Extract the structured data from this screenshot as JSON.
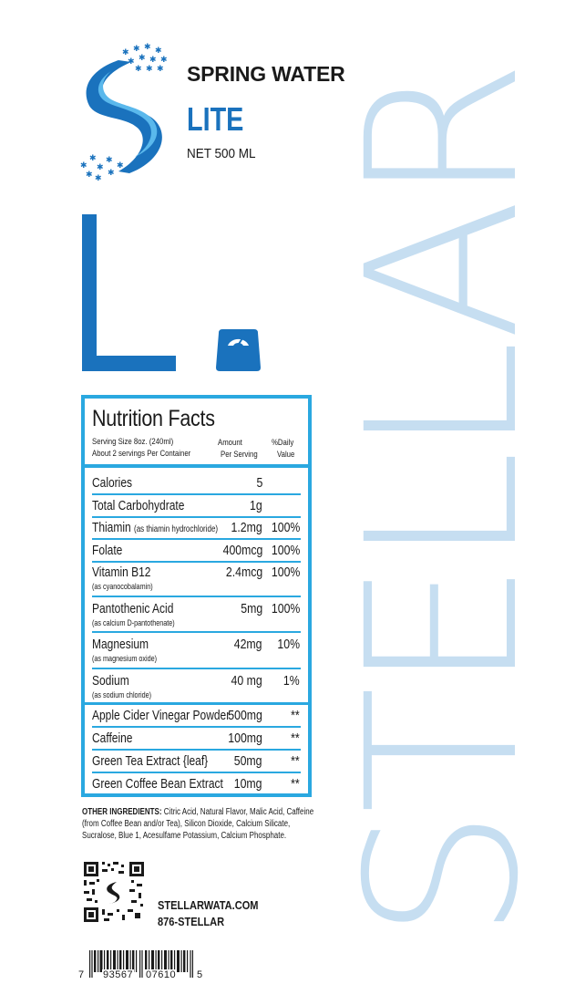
{
  "brand": {
    "vertical_name": "STELLAR",
    "product_line": "SPRING WATER",
    "variant": "LITE",
    "net_content": "NET 500 ML",
    "accent_color": "#1a72bd",
    "panel_color": "#2aa8e0",
    "vertical_color": "#c6def1"
  },
  "icons": {
    "logo": "stellar-s-logo-icon",
    "big_letter": "letter-l-mark",
    "scale": "weighing-scale-icon",
    "qr": "qr-code-icon",
    "barcode": "barcode-icon"
  },
  "nutrition": {
    "title": "Nutrition Facts",
    "serving_size": "Serving Size 8oz. (240ml)",
    "servings_per_container": "About 2 servings Per Container",
    "amount_header_1": "Amount",
    "amount_header_2": "Per Serving",
    "dv_header_1": "%Daily",
    "dv_header_2": "Value",
    "rows": [
      {
        "name": "Calories",
        "note": "",
        "sub": "",
        "amount": "5",
        "dv": ""
      },
      {
        "name": "Total Carbohydrate",
        "note": "",
        "sub": "",
        "amount": "1g",
        "dv": ""
      },
      {
        "name": "Thiamin",
        "note": "(as thiamin hydrochloride)",
        "sub": "",
        "amount": "1.2mg",
        "dv": "100%"
      },
      {
        "name": "Folate",
        "note": "",
        "sub": "",
        "amount": "400mcg",
        "dv": "100%"
      },
      {
        "name": "Vitamin B12",
        "note": "",
        "sub": "(as cyanocobalamin)",
        "amount": "2.4mcg",
        "dv": "100%"
      },
      {
        "name": "Pantothenic Acid",
        "note": "",
        "sub": "(as calcium D-pantothenate)",
        "amount": "5mg",
        "dv": "100%"
      },
      {
        "name": "Magnesium",
        "note": "",
        "sub": "(as magnesium oxide)",
        "amount": "42mg",
        "dv": "10%"
      },
      {
        "name": "Sodium",
        "note": "",
        "sub": "(as sodium chloride)",
        "amount": "40 mg",
        "dv": "1%"
      },
      {
        "name": "Apple Cider Vinegar Powder",
        "note": "",
        "sub": "",
        "amount": "500mg",
        "dv": "**"
      },
      {
        "name": "Caffeine",
        "note": "",
        "sub": "",
        "amount": "100mg",
        "dv": "**"
      },
      {
        "name": "Green Tea Extract {leaf}",
        "note": "",
        "sub": "",
        "amount": "50mg",
        "dv": "**"
      },
      {
        "name": "Green Coffee Bean Extract",
        "note": "",
        "sub": "",
        "amount": "10mg",
        "dv": "**"
      }
    ]
  },
  "ingredients": {
    "label": "OTHER INGREDIENTS:",
    "text": "Citric Acid, Natural Flavor, Malic Acid, Caffeine (from Coffee Bean and/or Tea), Silicon Dioxide, Calcium Silicate, Sucralose, Blue 1, Acesulfame Potassium, Calcium Phosphate."
  },
  "contact": {
    "website": "STELLARWATA.COM",
    "phone": "876-STELLAR"
  },
  "barcode": {
    "digit_left": "7",
    "group_1": "93567",
    "group_2": "07610",
    "digit_right": "5"
  }
}
